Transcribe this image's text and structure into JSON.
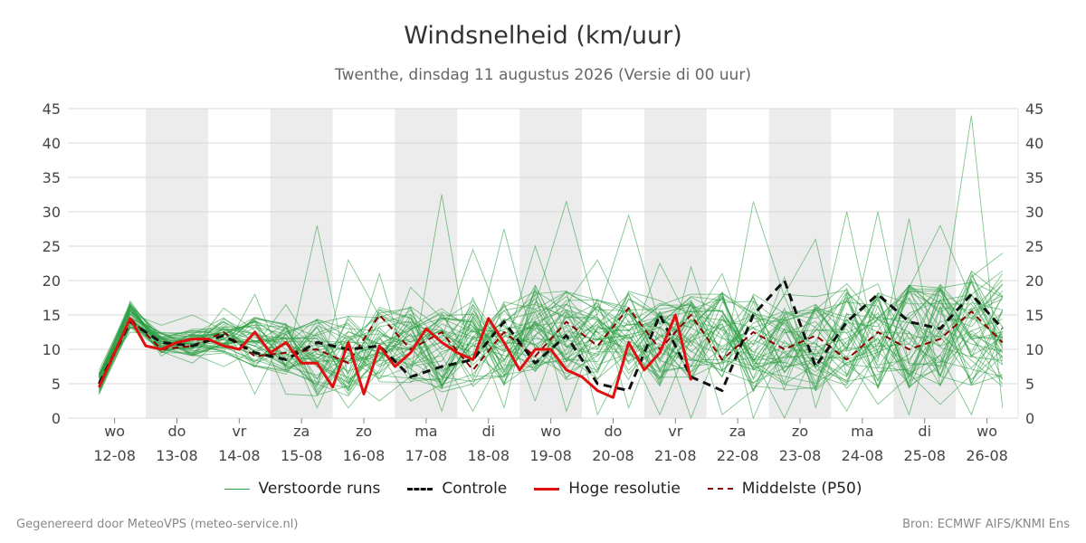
{
  "colors": {
    "ensemble": "#2e9e44",
    "controle": "#111111",
    "hoge_resolutie": "#e01010",
    "mediaan": "#8b0000",
    "weekend_band": "#ececec",
    "grid": "#d8d8d8"
  },
  "footer": {
    "left": "Gegenereerd door MeteoVPS (meteo-service.nl)",
    "right": "Bron: ECMWF AIFS/KNMI Ens"
  },
  "legend": [
    {
      "label": "Verstoorde runs",
      "style": "thin-green"
    },
    {
      "label": "Controle",
      "style": "dashed-black"
    },
    {
      "label": "Hoge resolutie",
      "style": "solid-red"
    },
    {
      "label": "Middelste (P50)",
      "style": "dashed-darkred"
    }
  ],
  "chart_data": {
    "type": "line",
    "title": "Windsnelheid (km/uur)",
    "subtitle": "Twenthe, dinsdag 11 augustus 2026 (Versie di 00 uur)",
    "ylim": [
      0,
      45
    ],
    "yticks": [
      0,
      5,
      10,
      15,
      20,
      25,
      30,
      35,
      40,
      45
    ],
    "xlim": [
      0,
      30.5
    ],
    "grid": true,
    "legend_position": "bottom",
    "x_ticks": [
      {
        "x": 1.5,
        "day": "wo",
        "date": "12-08"
      },
      {
        "x": 3.5,
        "day": "do",
        "date": "13-08"
      },
      {
        "x": 5.5,
        "day": "vr",
        "date": "14-08"
      },
      {
        "x": 7.5,
        "day": "za",
        "date": "15-08"
      },
      {
        "x": 9.5,
        "day": "zo",
        "date": "16-08"
      },
      {
        "x": 11.5,
        "day": "ma",
        "date": "17-08"
      },
      {
        "x": 13.5,
        "day": "di",
        "date": "18-08"
      },
      {
        "x": 15.5,
        "day": "wo",
        "date": "19-08"
      },
      {
        "x": 17.5,
        "day": "do",
        "date": "20-08"
      },
      {
        "x": 19.5,
        "day": "vr",
        "date": "21-08"
      },
      {
        "x": 21.5,
        "day": "za",
        "date": "22-08"
      },
      {
        "x": 23.5,
        "day": "zo",
        "date": "23-08"
      },
      {
        "x": 25.5,
        "day": "ma",
        "date": "24-08"
      },
      {
        "x": 27.5,
        "day": "di",
        "date": "25-08"
      },
      {
        "x": 29.5,
        "day": "wo",
        "date": "26-08"
      }
    ],
    "shaded_bands": [
      [
        2.5,
        4.5
      ],
      [
        6.5,
        8.5
      ],
      [
        10.5,
        12.5
      ],
      [
        14.5,
        16.5
      ],
      [
        18.5,
        20.5
      ],
      [
        22.5,
        24.5
      ],
      [
        26.5,
        28.5
      ]
    ],
    "x": [
      1,
      2,
      3,
      4,
      5,
      6,
      7,
      8,
      9,
      10,
      11,
      12,
      13,
      14,
      15,
      16,
      17,
      18,
      19,
      20,
      21,
      22,
      23,
      24,
      25,
      26,
      27,
      28,
      29,
      30
    ],
    "series": [
      {
        "name": "Controle",
        "style": "dashed-black",
        "x": [
          1,
          2,
          3,
          4,
          5,
          6,
          7,
          8,
          9,
          10,
          11,
          12,
          13,
          14,
          15,
          16,
          17,
          18,
          19,
          20,
          21,
          22,
          23,
          24,
          25,
          26,
          27,
          28,
          29,
          30
        ],
        "values": [
          5,
          14,
          11,
          10.5,
          12,
          9.5,
          8.5,
          11,
          10,
          10.5,
          6,
          7.5,
          8.5,
          14,
          8,
          12,
          5,
          4,
          15,
          6,
          4,
          15,
          20,
          7.5,
          14,
          18,
          14,
          13,
          18,
          13
        ]
      },
      {
        "name": "Hoge resolutie",
        "style": "solid-red",
        "x": [
          1,
          2,
          2.5,
          3,
          3.5,
          4,
          4.5,
          5,
          5.5,
          6,
          6.5,
          7,
          7.5,
          8,
          8.5,
          9,
          9.5,
          10,
          10.5,
          11,
          11.5,
          12,
          12.5,
          13,
          13.5,
          14,
          14.5,
          15,
          15.5,
          16,
          16.5,
          17,
          17.5,
          18,
          18.5,
          19,
          19.5,
          20
        ],
        "values": [
          4.5,
          14.5,
          10.5,
          10,
          11,
          11.5,
          11.5,
          10.5,
          10,
          12.5,
          9.5,
          11,
          8,
          8,
          4.5,
          11,
          3.5,
          10.5,
          7.5,
          9.5,
          13,
          11,
          9.5,
          8.5,
          14.5,
          11,
          7,
          10,
          10,
          7,
          6,
          4,
          3,
          11,
          7,
          9.5,
          15,
          5.5
        ]
      },
      {
        "name": "Middelste (P50)",
        "style": "dashed-darkred",
        "x": [
          1,
          2,
          3,
          4,
          5,
          6,
          7,
          8,
          9,
          10,
          11,
          12,
          13,
          14,
          15,
          16,
          17,
          18,
          19,
          20,
          21,
          22,
          23,
          24,
          25,
          26,
          27,
          28,
          29,
          30
        ],
        "values": [
          4.5,
          14.5,
          10,
          10.5,
          12.5,
          9,
          9.5,
          10,
          8,
          15,
          10,
          12.5,
          7,
          12.5,
          9,
          14,
          10.5,
          16,
          10,
          15,
          8.5,
          12.5,
          10,
          12,
          8.5,
          12.5,
          10,
          11.5,
          15.5,
          11
        ]
      }
    ],
    "ensemble": {
      "name": "Verstoorde runs",
      "members": 50,
      "x": [
        1,
        2,
        3,
        4,
        5,
        6,
        7,
        8,
        9,
        10,
        11,
        12,
        13,
        14,
        15,
        16,
        17,
        18,
        19,
        20,
        21,
        22,
        23,
        24,
        25,
        26,
        27,
        28,
        29,
        30
      ],
      "base": [
        5,
        15,
        11,
        11,
        12,
        11,
        10,
        9,
        9,
        11,
        11,
        10,
        11,
        11,
        13,
        12,
        12,
        12,
        11,
        12,
        12,
        11,
        11,
        11,
        12,
        12,
        12,
        12,
        13,
        13
      ],
      "spread": [
        1.2,
        1.5,
        1.2,
        1.5,
        2,
        3,
        3,
        4.5,
        4.5,
        4.5,
        4.5,
        5,
        5,
        5,
        5,
        5,
        5,
        5,
        5,
        5,
        5,
        5.5,
        5.5,
        5.5,
        6,
        6,
        6,
        6,
        6.5,
        6.5
      ],
      "max": [
        7,
        17,
        13.5,
        15,
        16,
        18,
        16.5,
        28,
        23,
        21,
        19,
        32.5,
        24.5,
        27.5,
        25,
        31.5,
        23,
        29.5,
        22.5,
        22,
        21,
        31.5,
        20.5,
        26,
        30,
        30,
        29,
        28,
        44,
        24
      ],
      "min": [
        3.5,
        12.5,
        9,
        8,
        7.5,
        3.5,
        3.5,
        1.5,
        1.5,
        2.5,
        2.5,
        1,
        1,
        1.5,
        2.5,
        1,
        0.5,
        1.5,
        0.5,
        0,
        0.5,
        0,
        0,
        1.5,
        1,
        2,
        0.5,
        2,
        0.5,
        1.5
      ]
    }
  }
}
